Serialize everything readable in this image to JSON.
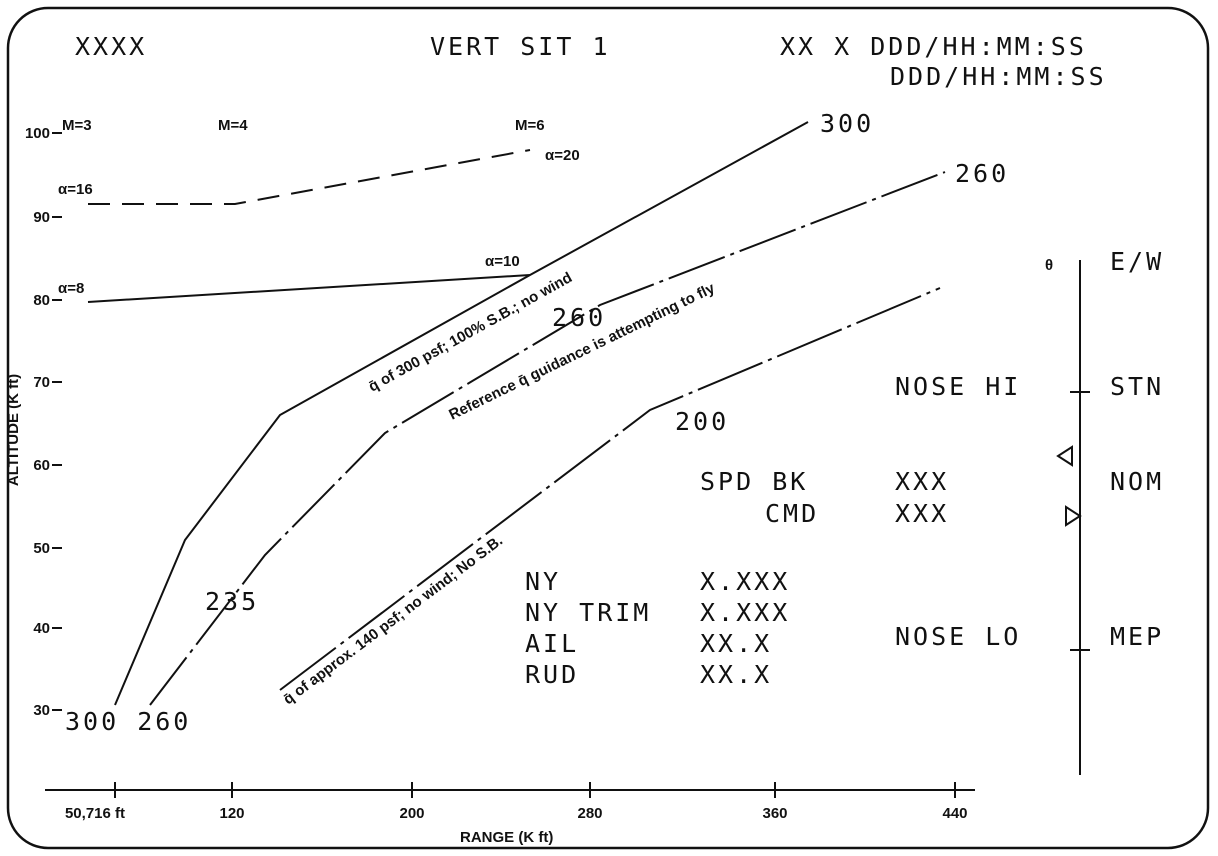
{
  "header": {
    "left": "XXXX",
    "title": "VERT SIT 1",
    "time_1": "XX X DDD/HH:MM:SS",
    "time_2": "DDD/HH:MM:SS"
  },
  "axes": {
    "y_title": "ALTITUDE (K ft)",
    "y_labels": [
      100,
      90,
      80,
      70,
      60,
      50,
      40,
      30
    ],
    "x_title": "RANGE (K ft)",
    "x_labels": [
      "50,716 ft",
      "120",
      "200",
      "280",
      "360",
      "440"
    ]
  },
  "mach": [
    "M=3",
    "M=4",
    "M=6"
  ],
  "alpha": [
    "α=16",
    "α=20",
    "α=8",
    "α=10"
  ],
  "curves": {
    "q300": "q̄ of 300 psf; 100% S.B.; no wind",
    "reference": "Reference q̄ guidance is attempting to fly",
    "q140": "q̄ of approx. 140 psf; no wind; No S.B."
  },
  "curve_labels": {
    "top_300": "300",
    "top_260": "260",
    "mid_260": "260",
    "mid_235": "235",
    "mid_200": "200",
    "bottom": "300 260"
  },
  "attitude": {
    "theta": "θ",
    "ew": "E/W",
    "nose_hi": "NOSE HI",
    "stn": "STN",
    "nom": "NOM",
    "nose_lo": "NOSE LO",
    "mep": "MEP"
  },
  "speedbrake": {
    "label": "SPD BK",
    "value": "XXX",
    "cmd_label": "CMD",
    "cmd_value": "XXX"
  },
  "readouts": [
    [
      "NY",
      "X.XXX"
    ],
    [
      "NY TRIM",
      "X.XXX"
    ],
    [
      "AIL",
      "XX.X"
    ],
    [
      "RUD",
      "XX.X"
    ]
  ]
}
